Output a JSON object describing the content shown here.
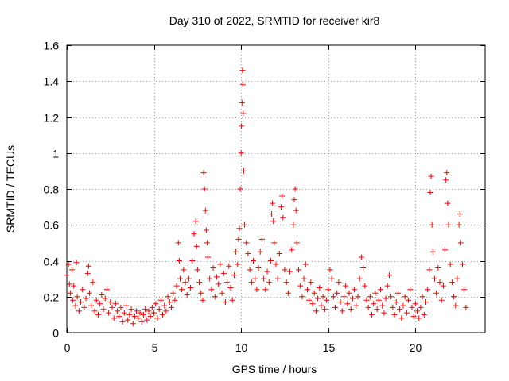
{
  "chart_data": {
    "type": "scatter",
    "title": "Day 310 of 2022, SRMTID for receiver kir8",
    "xlabel": "GPS time / hours",
    "ylabel": "SRMTID / TECUs",
    "xlim": [
      0,
      24
    ],
    "ylim": [
      0,
      1.6
    ],
    "xticks": [
      0,
      5,
      10,
      15,
      20
    ],
    "xtick_labels": [
      "0",
      "5",
      "10",
      "15",
      "20"
    ],
    "yticks": [
      0,
      0.2,
      0.4,
      0.6,
      0.8,
      1,
      1.2,
      1.4,
      1.6
    ],
    "ytick_labels": [
      "0",
      "0.2",
      "0.4",
      "0.6",
      "0.8",
      "1",
      "1.2",
      "1.4",
      "1.6"
    ],
    "grid": true,
    "marker": "+",
    "color": "#ff0000",
    "series": [
      {
        "name": "SRMTID",
        "points": [
          [
            0.0,
            0.32
          ],
          [
            0.1,
            0.38
          ],
          [
            0.15,
            0.27
          ],
          [
            0.2,
            0.22
          ],
          [
            0.3,
            0.35
          ],
          [
            0.35,
            0.18
          ],
          [
            0.4,
            0.26
          ],
          [
            0.5,
            0.15
          ],
          [
            0.55,
            0.39
          ],
          [
            0.6,
            0.2
          ],
          [
            0.7,
            0.12
          ],
          [
            0.8,
            0.17
          ],
          [
            0.9,
            0.24
          ],
          [
            1.0,
            0.14
          ],
          [
            1.1,
            0.19
          ],
          [
            1.2,
            0.33
          ],
          [
            1.25,
            0.37
          ],
          [
            1.3,
            0.22
          ],
          [
            1.4,
            0.15
          ],
          [
            1.5,
            0.28
          ],
          [
            1.6,
            0.12
          ],
          [
            1.7,
            0.18
          ],
          [
            1.8,
            0.1
          ],
          [
            1.9,
            0.16
          ],
          [
            2.0,
            0.21
          ],
          [
            2.1,
            0.13
          ],
          [
            2.2,
            0.19
          ],
          [
            2.3,
            0.24
          ],
          [
            2.4,
            0.11
          ],
          [
            2.5,
            0.17
          ],
          [
            2.6,
            0.14
          ],
          [
            2.7,
            0.08
          ],
          [
            2.8,
            0.16
          ],
          [
            2.9,
            0.12
          ],
          [
            3.0,
            0.09
          ],
          [
            3.1,
            0.14
          ],
          [
            3.2,
            0.06
          ],
          [
            3.3,
            0.11
          ],
          [
            3.4,
            0.15
          ],
          [
            3.5,
            0.07
          ],
          [
            3.6,
            0.1
          ],
          [
            3.7,
            0.13
          ],
          [
            3.8,
            0.05
          ],
          [
            3.9,
            0.09
          ],
          [
            4.0,
            0.12
          ],
          [
            4.1,
            0.08
          ],
          [
            4.2,
            0.11
          ],
          [
            4.3,
            0.06
          ],
          [
            4.4,
            0.1
          ],
          [
            4.5,
            0.13
          ],
          [
            4.6,
            0.07
          ],
          [
            4.7,
            0.12
          ],
          [
            4.8,
            0.09
          ],
          [
            4.9,
            0.14
          ],
          [
            5.0,
            0.11
          ],
          [
            5.1,
            0.16
          ],
          [
            5.2,
            0.08
          ],
          [
            5.3,
            0.13
          ],
          [
            5.4,
            0.18
          ],
          [
            5.5,
            0.1
          ],
          [
            5.6,
            0.15
          ],
          [
            5.7,
            0.12
          ],
          [
            5.8,
            0.2
          ],
          [
            5.9,
            0.17
          ],
          [
            6.0,
            0.14
          ],
          [
            6.1,
            0.22
          ],
          [
            6.2,
            0.18
          ],
          [
            6.3,
            0.26
          ],
          [
            6.4,
            0.5
          ],
          [
            6.45,
            0.4
          ],
          [
            6.5,
            0.3
          ],
          [
            6.6,
            0.24
          ],
          [
            6.7,
            0.35
          ],
          [
            6.8,
            0.28
          ],
          [
            6.9,
            0.21
          ],
          [
            7.0,
            0.3
          ],
          [
            7.1,
            0.25
          ],
          [
            7.2,
            0.4
          ],
          [
            7.3,
            0.55
          ],
          [
            7.4,
            0.62
          ],
          [
            7.45,
            0.48
          ],
          [
            7.5,
            0.35
          ],
          [
            7.6,
            0.28
          ],
          [
            7.7,
            0.22
          ],
          [
            7.8,
            0.18
          ],
          [
            7.85,
            0.89
          ],
          [
            7.9,
            0.8
          ],
          [
            7.95,
            0.68
          ],
          [
            8.0,
            0.57
          ],
          [
            8.05,
            0.5
          ],
          [
            8.1,
            0.42
          ],
          [
            8.2,
            0.3
          ],
          [
            8.3,
            0.24
          ],
          [
            8.4,
            0.36
          ],
          [
            8.5,
            0.2
          ],
          [
            8.6,
            0.31
          ],
          [
            8.7,
            0.27
          ],
          [
            8.8,
            0.38
          ],
          [
            8.9,
            0.22
          ],
          [
            9.0,
            0.33
          ],
          [
            9.1,
            0.17
          ],
          [
            9.2,
            0.28
          ],
          [
            9.3,
            0.37
          ],
          [
            9.4,
            0.25
          ],
          [
            9.5,
            0.18
          ],
          [
            9.6,
            0.32
          ],
          [
            9.7,
            0.45
          ],
          [
            9.8,
            0.38
          ],
          [
            9.85,
            0.52
          ],
          [
            9.9,
            0.58
          ],
          [
            9.95,
            0.8
          ],
          [
            10.0,
            1.0
          ],
          [
            10.02,
            1.15
          ],
          [
            10.05,
            1.28
          ],
          [
            10.08,
            1.46
          ],
          [
            10.1,
            1.38
          ],
          [
            10.12,
            1.22
          ],
          [
            10.15,
            0.9
          ],
          [
            10.2,
            0.6
          ],
          [
            10.3,
            0.5
          ],
          [
            10.4,
            0.44
          ],
          [
            10.5,
            0.35
          ],
          [
            10.6,
            0.28
          ],
          [
            10.7,
            0.4
          ],
          [
            10.8,
            0.3
          ],
          [
            10.9,
            0.24
          ],
          [
            11.0,
            0.36
          ],
          [
            11.1,
            0.45
          ],
          [
            11.2,
            0.52
          ],
          [
            11.3,
            0.3
          ],
          [
            11.4,
            0.24
          ],
          [
            11.5,
            0.34
          ],
          [
            11.6,
            0.28
          ],
          [
            11.7,
            0.4
          ],
          [
            11.75,
            0.66
          ],
          [
            11.8,
            0.72
          ],
          [
            11.85,
            0.62
          ],
          [
            11.9,
            0.5
          ],
          [
            12.0,
            0.38
          ],
          [
            12.1,
            0.3
          ],
          [
            12.2,
            0.44
          ],
          [
            12.3,
            0.7
          ],
          [
            12.35,
            0.76
          ],
          [
            12.4,
            0.64
          ],
          [
            12.5,
            0.35
          ],
          [
            12.6,
            0.28
          ],
          [
            12.7,
            0.22
          ],
          [
            12.8,
            0.34
          ],
          [
            12.9,
            0.46
          ],
          [
            13.0,
            0.6
          ],
          [
            13.05,
            0.74
          ],
          [
            13.1,
            0.8
          ],
          [
            13.15,
            0.68
          ],
          [
            13.2,
            0.5
          ],
          [
            13.3,
            0.35
          ],
          [
            13.4,
            0.26
          ],
          [
            13.5,
            0.2
          ],
          [
            13.6,
            0.3
          ],
          [
            13.7,
            0.38
          ],
          [
            13.8,
            0.24
          ],
          [
            13.9,
            0.18
          ],
          [
            14.0,
            0.28
          ],
          [
            14.1,
            0.16
          ],
          [
            14.2,
            0.22
          ],
          [
            14.3,
            0.12
          ],
          [
            14.4,
            0.19
          ],
          [
            14.5,
            0.25
          ],
          [
            14.6,
            0.15
          ],
          [
            14.7,
            0.2
          ],
          [
            14.8,
            0.13
          ],
          [
            14.9,
            0.18
          ],
          [
            15.0,
            0.24
          ],
          [
            15.1,
            0.35
          ],
          [
            15.2,
            0.3
          ],
          [
            15.3,
            0.2
          ],
          [
            15.4,
            0.14
          ],
          [
            15.5,
            0.22
          ],
          [
            15.6,
            0.28
          ],
          [
            15.7,
            0.17
          ],
          [
            15.8,
            0.12
          ],
          [
            15.9,
            0.2
          ],
          [
            16.0,
            0.26
          ],
          [
            16.1,
            0.16
          ],
          [
            16.2,
            0.22
          ],
          [
            16.3,
            0.13
          ],
          [
            16.4,
            0.19
          ],
          [
            16.5,
            0.24
          ],
          [
            16.6,
            0.15
          ],
          [
            16.7,
            0.2
          ],
          [
            16.8,
            0.3
          ],
          [
            16.9,
            0.42
          ],
          [
            17.0,
            0.36
          ],
          [
            17.1,
            0.26
          ],
          [
            17.2,
            0.18
          ],
          [
            17.3,
            0.14
          ],
          [
            17.4,
            0.2
          ],
          [
            17.5,
            0.1
          ],
          [
            17.6,
            0.16
          ],
          [
            17.7,
            0.22
          ],
          [
            17.8,
            0.13
          ],
          [
            17.9,
            0.18
          ],
          [
            18.0,
            0.24
          ],
          [
            18.1,
            0.15
          ],
          [
            18.2,
            0.11
          ],
          [
            18.3,
            0.19
          ],
          [
            18.4,
            0.26
          ],
          [
            18.5,
            0.32
          ],
          [
            18.6,
            0.2
          ],
          [
            18.7,
            0.14
          ],
          [
            18.8,
            0.1
          ],
          [
            18.9,
            0.17
          ],
          [
            19.0,
            0.22
          ],
          [
            19.1,
            0.13
          ],
          [
            19.2,
            0.08
          ],
          [
            19.3,
            0.15
          ],
          [
            19.4,
            0.2
          ],
          [
            19.5,
            0.11
          ],
          [
            19.6,
            0.18
          ],
          [
            19.7,
            0.24
          ],
          [
            19.8,
            0.14
          ],
          [
            19.9,
            0.09
          ],
          [
            20.0,
            0.16
          ],
          [
            20.1,
            0.12
          ],
          [
            20.2,
            0.08
          ],
          [
            20.3,
            0.14
          ],
          [
            20.4,
            0.2
          ],
          [
            20.5,
            0.1
          ],
          [
            20.6,
            0.17
          ],
          [
            20.7,
            0.24
          ],
          [
            20.8,
            0.35
          ],
          [
            20.85,
            0.78
          ],
          [
            20.9,
            0.87
          ],
          [
            20.95,
            0.6
          ],
          [
            21.0,
            0.45
          ],
          [
            21.1,
            0.3
          ],
          [
            21.2,
            0.22
          ],
          [
            21.3,
            0.36
          ],
          [
            21.4,
            0.28
          ],
          [
            21.5,
            0.18
          ],
          [
            21.6,
            0.26
          ],
          [
            21.7,
            0.46
          ],
          [
            21.75,
            0.85
          ],
          [
            21.8,
            0.89
          ],
          [
            21.85,
            0.72
          ],
          [
            21.9,
            0.6
          ],
          [
            22.0,
            0.38
          ],
          [
            22.1,
            0.28
          ],
          [
            22.2,
            0.2
          ],
          [
            22.3,
            0.15
          ],
          [
            22.4,
            0.3
          ],
          [
            22.5,
            0.6
          ],
          [
            22.55,
            0.66
          ],
          [
            22.6,
            0.5
          ],
          [
            22.7,
            0.38
          ],
          [
            22.8,
            0.24
          ],
          [
            22.9,
            0.14
          ]
        ]
      }
    ]
  }
}
